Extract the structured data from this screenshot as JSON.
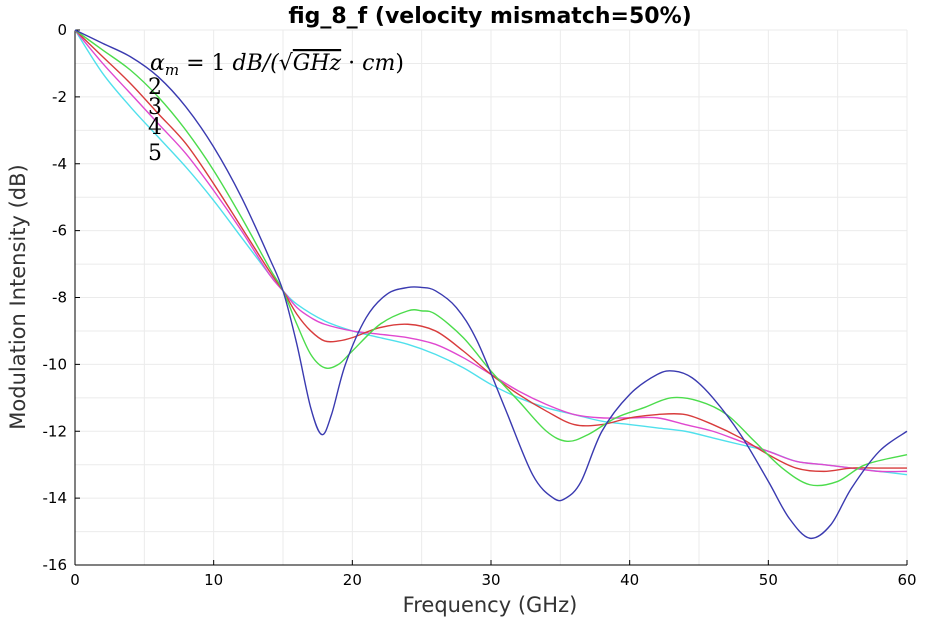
{
  "chart_data": {
    "type": "line",
    "title": "fig_8_f (velocity mismatch=50%)",
    "xlabel": "Frequency (GHz)",
    "ylabel": "Modulation Intensity (dB)",
    "xlim": [
      0,
      60
    ],
    "ylim": [
      -16,
      0
    ],
    "xticks": [
      "0",
      "10",
      "20",
      "30",
      "40",
      "50",
      "60"
    ],
    "yticks": [
      "0",
      "-2",
      "-4",
      "-6",
      "-8",
      "-10",
      "-12",
      "-14",
      "-16"
    ],
    "grid": true,
    "annotation": {
      "symbol": "α",
      "subscript": "m",
      "equals_value": " = 1 ",
      "unit_prefix": "dB/(",
      "sqrt_sign": "√",
      "unit_sqrt": "GHz",
      "unit_dot": " · ",
      "unit_cm": "cm",
      "unit_close": ")",
      "labels": [
        "2",
        "3",
        "4",
        "5"
      ]
    },
    "series": [
      {
        "name": "1",
        "color": "#3a3ab0",
        "x": [
          0,
          2,
          4,
          6,
          8,
          10,
          12,
          14,
          15,
          16,
          17,
          17.8,
          18.5,
          19.5,
          21,
          22.5,
          24,
          25,
          26,
          27.5,
          29,
          31,
          33,
          34.5,
          35.4,
          36.5,
          38,
          40,
          42,
          43.2,
          44.5,
          46,
          48,
          50,
          51.5,
          53,
          54.5,
          56,
          58,
          60
        ],
        "y": [
          0,
          -0.4,
          -0.8,
          -1.4,
          -2.3,
          -3.5,
          -5.0,
          -6.8,
          -7.8,
          -9.4,
          -11.3,
          -12.1,
          -11.5,
          -10.0,
          -8.6,
          -7.9,
          -7.7,
          -7.7,
          -7.8,
          -8.3,
          -9.3,
          -11.3,
          -13.3,
          -14.0,
          -14.0,
          -13.5,
          -12.0,
          -10.9,
          -10.3,
          -10.2,
          -10.4,
          -11.0,
          -12.1,
          -13.5,
          -14.6,
          -15.2,
          -14.8,
          -13.7,
          -12.6,
          -12.0
        ]
      },
      {
        "name": "2",
        "color": "#4cdc4c",
        "x": [
          0,
          2,
          4,
          6,
          8,
          10,
          12,
          14,
          15,
          16,
          17,
          18,
          19,
          20,
          22,
          24,
          25,
          26,
          28,
          30,
          32,
          34,
          35.5,
          37,
          39,
          41,
          43,
          45,
          47,
          49,
          51,
          53,
          55,
          57,
          60
        ],
        "y": [
          0,
          -0.6,
          -1.2,
          -2.0,
          -3.0,
          -4.2,
          -5.6,
          -7.1,
          -7.8,
          -8.8,
          -9.7,
          -10.1,
          -10.0,
          -9.6,
          -8.8,
          -8.4,
          -8.4,
          -8.5,
          -9.2,
          -10.2,
          -11.1,
          -12.0,
          -12.3,
          -12.1,
          -11.6,
          -11.3,
          -11.0,
          -11.1,
          -11.5,
          -12.3,
          -13.1,
          -13.6,
          -13.5,
          -13.0,
          -12.7
        ]
      },
      {
        "name": "3",
        "color": "#d83c3c",
        "x": [
          0,
          2,
          4,
          6,
          8,
          10,
          12,
          14,
          15,
          16,
          17,
          18,
          19,
          20,
          22,
          24,
          26,
          28,
          30,
          32,
          34,
          36,
          38,
          40,
          42,
          44,
          46,
          48,
          50,
          52,
          54,
          56,
          58,
          60
        ],
        "y": [
          0,
          -0.8,
          -1.6,
          -2.5,
          -3.4,
          -4.6,
          -5.9,
          -7.2,
          -7.8,
          -8.5,
          -9.0,
          -9.3,
          -9.3,
          -9.2,
          -8.9,
          -8.8,
          -9.0,
          -9.6,
          -10.3,
          -10.9,
          -11.4,
          -11.8,
          -11.8,
          -11.6,
          -11.5,
          -11.5,
          -11.8,
          -12.2,
          -12.7,
          -13.1,
          -13.2,
          -13.1,
          -13.1,
          -13.1
        ]
      },
      {
        "name": "4",
        "color": "#e048d0",
        "x": [
          0,
          2,
          4,
          6,
          8,
          10,
          12,
          14,
          15,
          16,
          17,
          18,
          20,
          22,
          24,
          26,
          28,
          30,
          32,
          34,
          36,
          38,
          40,
          42,
          44,
          46,
          48,
          50,
          52,
          54,
          56,
          58,
          60
        ],
        "y": [
          0,
          -1.0,
          -1.9,
          -2.8,
          -3.7,
          -4.8,
          -6.0,
          -7.3,
          -7.8,
          -8.3,
          -8.6,
          -8.8,
          -9.0,
          -9.1,
          -9.2,
          -9.4,
          -9.8,
          -10.3,
          -10.8,
          -11.2,
          -11.5,
          -11.6,
          -11.6,
          -11.6,
          -11.8,
          -12.0,
          -12.3,
          -12.6,
          -12.9,
          -13.0,
          -13.1,
          -13.2,
          -13.2
        ]
      },
      {
        "name": "5",
        "color": "#50e0ec",
        "x": [
          0,
          2,
          4,
          6,
          8,
          10,
          12,
          14,
          15,
          16,
          18,
          20,
          22,
          24,
          26,
          28,
          30,
          32,
          34,
          36,
          38,
          40,
          42,
          44,
          46,
          48,
          50,
          52,
          54,
          56,
          58,
          60
        ],
        "y": [
          0,
          -1.3,
          -2.3,
          -3.2,
          -4.1,
          -5.1,
          -6.2,
          -7.3,
          -7.8,
          -8.2,
          -8.7,
          -9.0,
          -9.2,
          -9.4,
          -9.7,
          -10.1,
          -10.6,
          -11.0,
          -11.3,
          -11.5,
          -11.7,
          -11.8,
          -11.9,
          -12.0,
          -12.2,
          -12.4,
          -12.6,
          -12.9,
          -13.0,
          -13.1,
          -13.2,
          -13.3
        ]
      }
    ]
  }
}
